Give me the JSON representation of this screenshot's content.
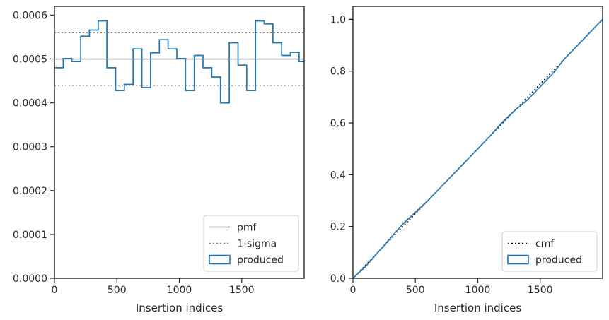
{
  "chart_data": [
    {
      "type": "step",
      "xlabel": "Insertion indices",
      "ylabel": "",
      "xlim": [
        0,
        2000
      ],
      "ylim": [
        0,
        0.00062
      ],
      "xticks": [
        0,
        500,
        1000,
        1500
      ],
      "xtick_labels": [
        "0",
        "500",
        "1000",
        "1500"
      ],
      "yticks": [
        0,
        0.0001,
        0.0002,
        0.0003,
        0.0004,
        0.0005,
        0.0006
      ],
      "ytick_labels": [
        "0.0000",
        "0.0001",
        "0.0002",
        "0.0003",
        "0.0004",
        "0.0005",
        "0.0006"
      ],
      "grid": false,
      "legend": "lower-right",
      "reference_lines": [
        {
          "name": "pmf",
          "y": 0.0005,
          "style": "solid",
          "color": "#808080"
        },
        {
          "name": "1-sigma",
          "y": 0.00056,
          "style": "dotted",
          "color": "#808080"
        },
        {
          "name": "1-sigma",
          "y": 0.00044,
          "style": "dotted",
          "color": "#808080"
        }
      ],
      "series": [
        {
          "name": "produced",
          "color": "#1f77b4",
          "bin_edges": [
            0,
            70,
            140,
            210,
            280,
            350,
            420,
            490,
            560,
            630,
            700,
            770,
            840,
            910,
            980,
            1050,
            1120,
            1190,
            1260,
            1330,
            1400,
            1470,
            1540,
            1610,
            1680,
            1750,
            1820,
            1890,
            1960,
            2000
          ],
          "values": [
            0.00048,
            0.000501,
            0.000494,
            0.000552,
            0.000566,
            0.000587,
            0.00048,
            0.000428,
            0.000442,
            0.000523,
            0.000435,
            0.000514,
            0.000544,
            0.000523,
            0.000501,
            0.000428,
            0.000508,
            0.00048,
            0.000459,
            0.0004,
            0.000537,
            0.000486,
            0.000428,
            0.000587,
            0.00058,
            0.000537,
            0.000508,
            0.000515,
            0.000494
          ]
        }
      ]
    },
    {
      "type": "line",
      "xlabel": "Insertion indices",
      "ylabel": "",
      "xlim": [
        0,
        2000
      ],
      "ylim": [
        0,
        1.05
      ],
      "xticks": [
        0,
        500,
        1000,
        1500
      ],
      "xtick_labels": [
        "0",
        "500",
        "1000",
        "1500"
      ],
      "yticks": [
        0,
        0.2,
        0.4,
        0.6,
        0.8,
        1.0
      ],
      "ytick_labels": [
        "0.0",
        "0.2",
        "0.4",
        "0.6",
        "0.8",
        "1.0"
      ],
      "grid": false,
      "legend": "lower-right",
      "series": [
        {
          "name": "cmf",
          "style": "dotted",
          "color": "#000000",
          "x": [
            0,
            2000
          ],
          "y": [
            0,
            1.0
          ]
        },
        {
          "name": "produced",
          "style": "solid",
          "color": "#1f77b4",
          "x": [
            0,
            100,
            200,
            300,
            400,
            500,
            600,
            700,
            800,
            900,
            1000,
            1100,
            1200,
            1300,
            1400,
            1500,
            1600,
            1700,
            1800,
            1900,
            2000
          ],
          "y": [
            0,
            0.045,
            0.1,
            0.155,
            0.21,
            0.255,
            0.3,
            0.35,
            0.4,
            0.45,
            0.5,
            0.55,
            0.605,
            0.65,
            0.69,
            0.74,
            0.79,
            0.85,
            0.9,
            0.95,
            1.0
          ]
        }
      ]
    }
  ]
}
